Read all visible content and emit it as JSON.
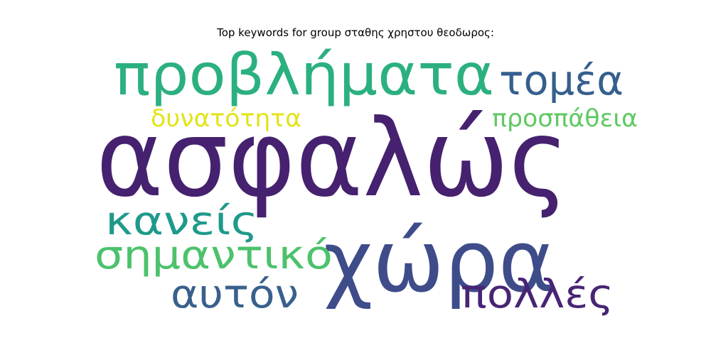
{
  "chart_data": {
    "type": "wordcloud",
    "title": "Top keywords for group σταθης χρηστου θεοδωρος:",
    "words": [
      {
        "text": "ασφαλώς",
        "rank": 1,
        "color": "#46216f"
      },
      {
        "text": "χώρα",
        "rank": 2,
        "color": "#3e4c8a"
      },
      {
        "text": "προβλήματα",
        "rank": 3,
        "color": "#2bb07f"
      },
      {
        "text": "σημαντικό",
        "rank": 4,
        "color": "#4cc26c"
      },
      {
        "text": "κανείς",
        "rank": 5,
        "color": "#1f9a8a"
      },
      {
        "text": "αυτόν",
        "rank": 6,
        "color": "#39608c"
      },
      {
        "text": "πολλές",
        "rank": 7,
        "color": "#482475"
      },
      {
        "text": "τομέα",
        "rank": 8,
        "color": "#355f8d"
      },
      {
        "text": "δυνατότητα",
        "rank": 9,
        "color": "#e2e418"
      },
      {
        "text": "προσπάθεια",
        "rank": 10,
        "color": "#5ec962"
      }
    ]
  }
}
